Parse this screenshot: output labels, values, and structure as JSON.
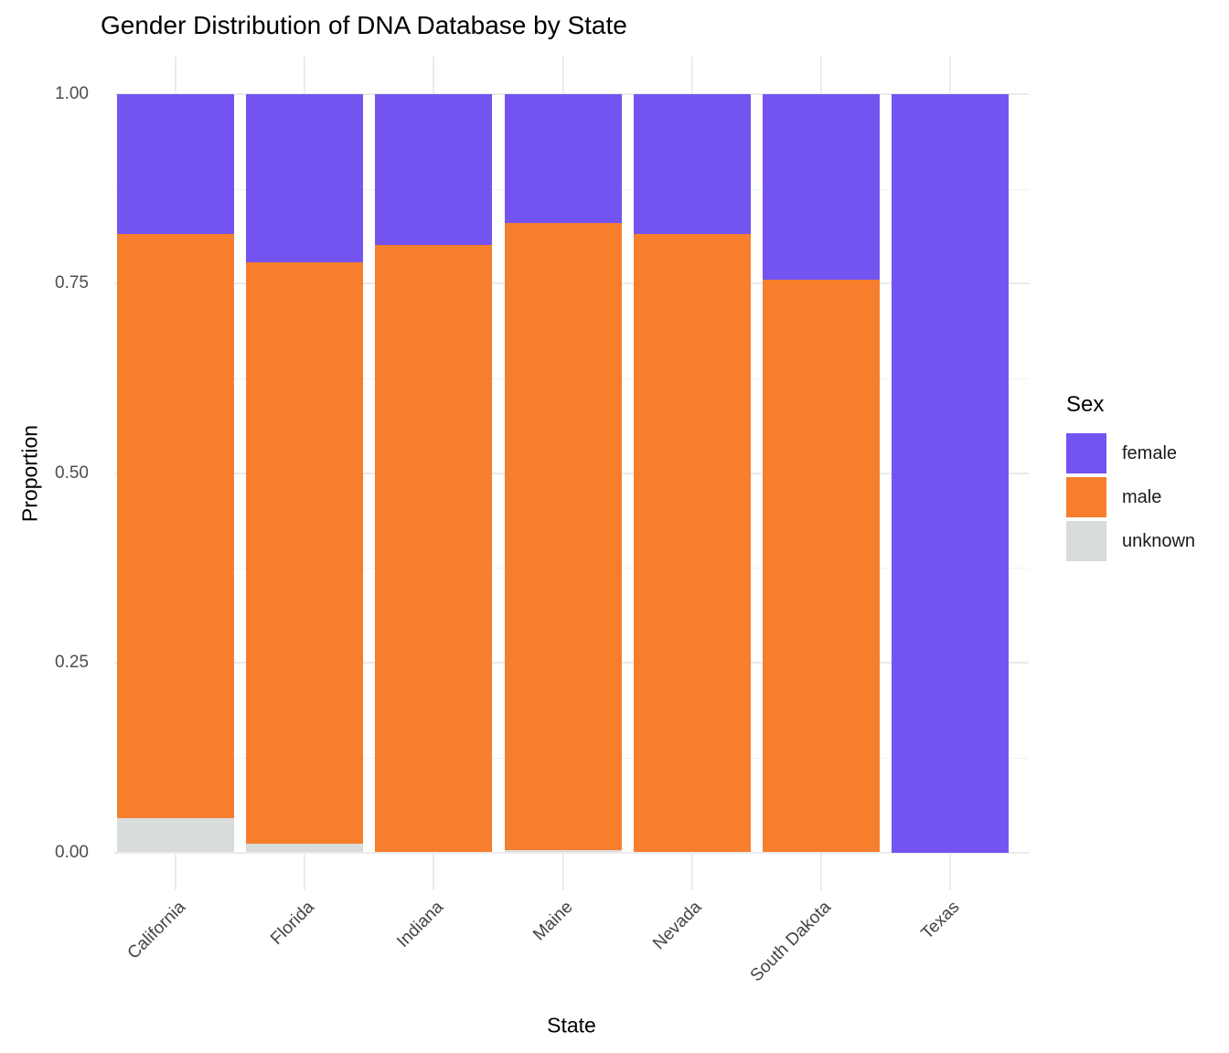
{
  "chart_data": {
    "type": "bar",
    "stacked": true,
    "normalized": true,
    "title": "Gender Distribution of DNA Database by State",
    "xlabel": "State",
    "ylabel": "Proportion",
    "legend_title": "Sex",
    "legend_position": "right",
    "categories": [
      "California",
      "Florida",
      "Indiana",
      "Maine",
      "Nevada",
      "South Dakota",
      "Texas"
    ],
    "series": [
      {
        "name": "female",
        "color": "#7454F1",
        "values": [
          0.185,
          0.222,
          0.199,
          0.17,
          0.184,
          0.245,
          1.0
        ]
      },
      {
        "name": "male",
        "color": "#F67E2C",
        "values": [
          0.77,
          0.767,
          0.801,
          0.827,
          0.816,
          0.755,
          0.0
        ]
      },
      {
        "name": "unknown",
        "color": "#D8DCDA",
        "values": [
          0.045,
          0.011,
          0.0,
          0.003,
          0.0,
          0.0,
          0.0
        ]
      }
    ],
    "ylim": [
      0,
      1
    ],
    "y_ticks": [
      {
        "label": "0.00",
        "value": 0.0
      },
      {
        "label": "0.25",
        "value": 0.25
      },
      {
        "label": "0.50",
        "value": 0.5
      },
      {
        "label": "0.75",
        "value": 0.75
      },
      {
        "label": "1.00",
        "value": 1.0
      }
    ],
    "y_minor_gridlines": [
      0.125,
      0.375,
      0.625,
      0.875
    ],
    "grid": true,
    "colors": {
      "grid_major": "#EBEBEB",
      "grid_minor": "#F2F2F2",
      "axis_text": "#4D4D4D",
      "title_text": "#000000",
      "background": "#FFFFFF"
    }
  }
}
